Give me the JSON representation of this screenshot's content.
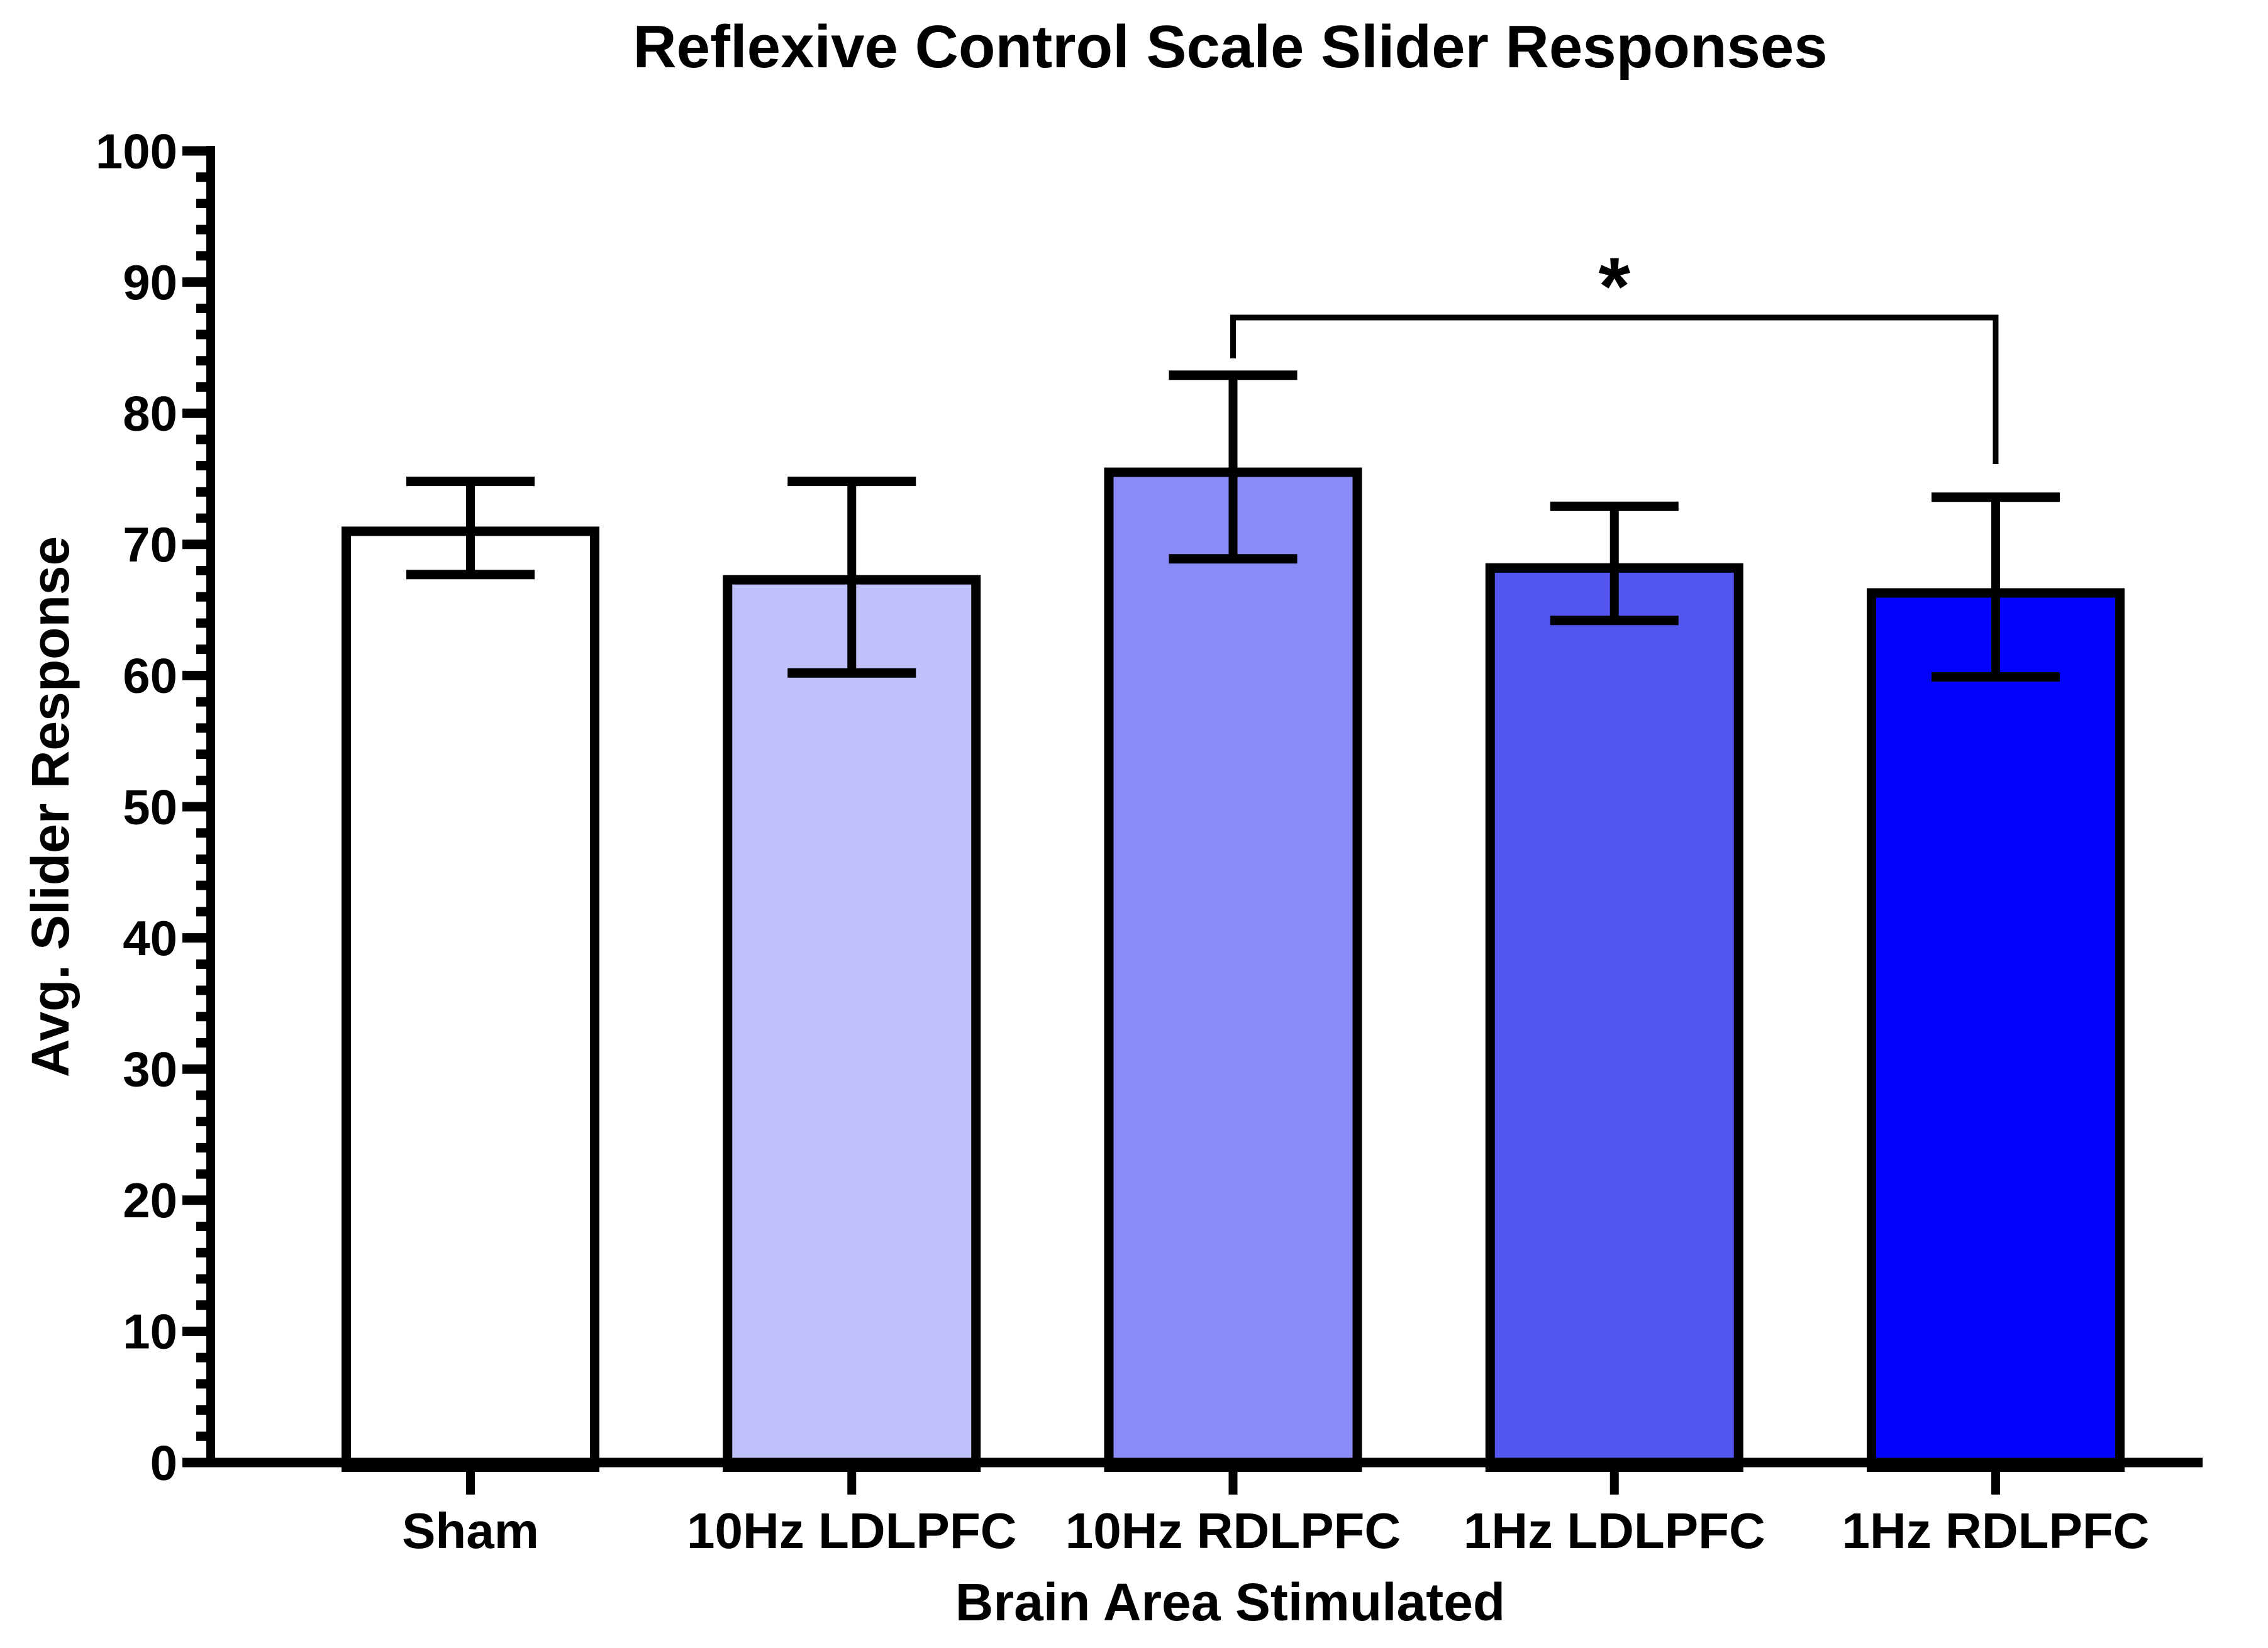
{
  "page": {
    "background": "#ffffff"
  },
  "chart_data": {
    "type": "bar",
    "title": "Reflexive Control Scale Slider Responses",
    "xlabel": "Brain Area Stimulated",
    "ylabel": "Avg. Slider Response",
    "categories": [
      "Sham",
      "10Hz LDLPFC",
      "10Hz RDLPFC",
      "1Hz LDLPFC",
      "1Hz RDLPFC"
    ],
    "values": [
      71,
      67.3,
      75.5,
      68.2,
      66.3
    ],
    "error_caps_upper": [
      74.8,
      74.8,
      82.9,
      72.9,
      73.6
    ],
    "error_caps_lower": [
      67.7,
      60.2,
      68.9,
      64.2,
      59.9
    ],
    "bar_fill_colors": [
      "#ffffff",
      "#c0c0fa",
      "#8b8bf8",
      "#5456f0",
      "#0303fd"
    ],
    "bar_border_color": "#000000",
    "axis_color": "#000000",
    "ylim": [
      0,
      100
    ],
    "y_major_step": 10,
    "y_minor_step": 2,
    "y_ticks": [
      0,
      10,
      20,
      30,
      40,
      50,
      60,
      70,
      80,
      90,
      100
    ],
    "grid": "off",
    "legend": "none",
    "significance": {
      "from_category": "10Hz RDLPFC",
      "to_category": "1Hz RDLPFC",
      "label": "*"
    }
  }
}
